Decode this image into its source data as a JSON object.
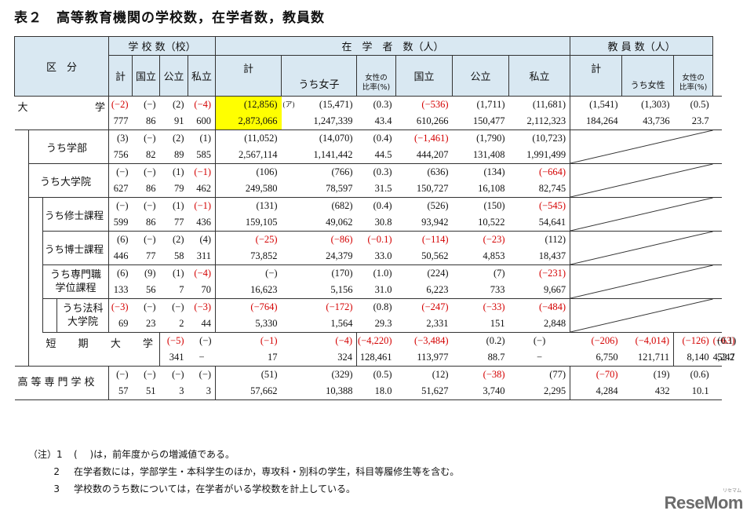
{
  "title": {
    "number": "表２",
    "text": "高等教育機関の学校数，在学者数，教員数"
  },
  "headers": {
    "kubun": "区　分",
    "schools": "学 校 数（校）",
    "students": "在　学　者　数（人）",
    "teachers": "教 員 数（人）",
    "kei": "計",
    "kokuritsu": "国立",
    "koritsu": "公立",
    "shiritsu": "私立",
    "uchi_joshi": "うち女子",
    "joshi_ratio_1": "女性の",
    "joshi_ratio_2": "比率(%)",
    "uchi_josei": "うち女性",
    "josei_ratio_1": "女性の",
    "josei_ratio_2": "比率(%)"
  },
  "rows": [
    {
      "label": "大学",
      "label_a": "大",
      "label_b": "学",
      "delta": [
        "(−2)",
        "(−)",
        "(2)",
        "(−4)",
        "(12,856)",
        "(15,471)",
        "(0.3)",
        "(−536)",
        "(1,711)",
        "(11,681)",
        "(1,541)",
        "(1,303)",
        "(0.5)"
      ],
      "value": [
        "777",
        "86",
        "91",
        "600",
        "2,873,066",
        "1,247,339",
        "43.4",
        "610,266",
        "150,477",
        "2,112,323",
        "184,264",
        "43,736",
        "23.7"
      ],
      "mark": "(ア)"
    },
    {
      "label": "うち学部",
      "delta": [
        "(3)",
        "(−)",
        "(2)",
        "(1)",
        "(11,052)",
        "(14,070)",
        "(0.4)",
        "(−1,461)",
        "(1,790)",
        "(10,723)"
      ],
      "value": [
        "756",
        "82",
        "89",
        "585",
        "2,567,114",
        "1,141,442",
        "44.5",
        "444,207",
        "131,408",
        "1,991,499"
      ]
    },
    {
      "label": "うち大学院",
      "delta": [
        "(−)",
        "(−)",
        "(1)",
        "(−1)",
        "(106)",
        "(766)",
        "(0.3)",
        "(636)",
        "(134)",
        "(−664)"
      ],
      "value": [
        "627",
        "86",
        "79",
        "462",
        "249,580",
        "78,597",
        "31.5",
        "150,727",
        "16,108",
        "82,745"
      ]
    },
    {
      "label": "うち修士課程",
      "delta": [
        "(−)",
        "(−)",
        "(1)",
        "(−1)",
        "(131)",
        "(682)",
        "(0.4)",
        "(526)",
        "(150)",
        "(−545)"
      ],
      "value": [
        "599",
        "86",
        "77",
        "436",
        "159,105",
        "49,062",
        "30.8",
        "93,942",
        "10,522",
        "54,641"
      ]
    },
    {
      "label": "うち博士課程",
      "delta": [
        "(6)",
        "(−)",
        "(2)",
        "(4)",
        "(−25)",
        "(−86)",
        "(−0.1)",
        "(−114)",
        "(−23)",
        "(112)"
      ],
      "value": [
        "446",
        "77",
        "58",
        "311",
        "73,852",
        "24,379",
        "33.0",
        "50,562",
        "4,853",
        "18,437"
      ]
    },
    {
      "label_1": "うち専門職",
      "label_2": "学位課程",
      "delta": [
        "(6)",
        "(9)",
        "(1)",
        "(−4)",
        "(−)",
        "(170)",
        "(1.0)",
        "(224)",
        "(7)",
        "(−231)"
      ],
      "value": [
        "133",
        "56",
        "7",
        "70",
        "16,623",
        "5,156",
        "31.0",
        "6,223",
        "733",
        "9,667"
      ]
    },
    {
      "label_1": "うち法科",
      "label_2": "大学院",
      "delta": [
        "(−3)",
        "(−)",
        "(−)",
        "(−3)",
        "(−764)",
        "(−172)",
        "(0.8)",
        "(−247)",
        "(−33)",
        "(−484)"
      ],
      "value": [
        "69",
        "23",
        "2",
        "44",
        "5,330",
        "1,564",
        "29.3",
        "2,331",
        "151",
        "2,848"
      ]
    },
    {
      "label": "短期大学",
      "label_a": "短",
      "label_b": "期",
      "label_c": "大",
      "label_d": "学",
      "delta": [
        "(−5)",
        "(−)",
        "(−1)",
        "(−4)",
        "(−4,220)",
        "(−3,484)",
        "(0.2)",
        "(−)",
        "(−206)",
        "(−4,014)",
        "(−126)",
        "(−63)",
        "(0.1)"
      ],
      "value": [
        "341",
        "−",
        "17",
        "324",
        "128,461",
        "113,977",
        "88.7",
        "−",
        "6,750",
        "121,711",
        "8,140",
        "4,247",
        "52.2"
      ]
    },
    {
      "label": "高等専門学校",
      "delta": [
        "(−)",
        "(−)",
        "(−)",
        "(−)",
        "(51)",
        "(329)",
        "(0.5)",
        "(12)",
        "(−38)",
        "(77)",
        "(−70)",
        "(19)",
        "(0.6)"
      ],
      "value": [
        "57",
        "51",
        "3",
        "3",
        "57,662",
        "10,388",
        "18.0",
        "51,627",
        "3,740",
        "2,295",
        "4,284",
        "432",
        "10.1"
      ]
    }
  ],
  "notes": [
    {
      "prefix": "（注）1",
      "text": "(　 )は，前年度からの増減値である。"
    },
    {
      "prefix": "2",
      "text": "在学者数には，学部学生・本科学生のほか，専攻科・別科の学生，科目等履修生等を含む。"
    },
    {
      "prefix": "3",
      "text": "学校数のうち数については，在学者がいる学校数を計上している。"
    }
  ],
  "logo": {
    "text": "ReseMom",
    "sub": "リセマム"
  },
  "colors": {
    "header_bg": "#d9e8f2",
    "negative": "#d40000",
    "highlight": "#ffff00"
  }
}
